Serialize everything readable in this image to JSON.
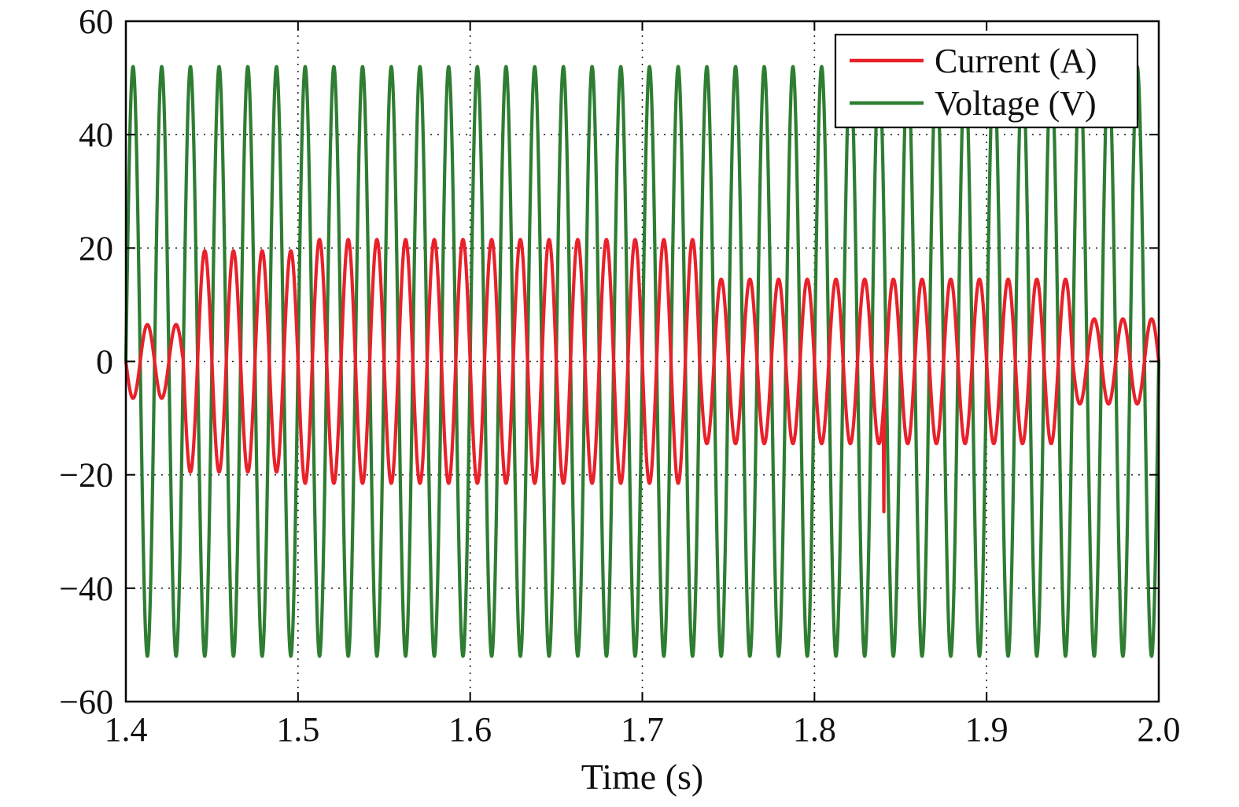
{
  "chart_data": {
    "type": "line",
    "title": "",
    "xlabel": "Time (s)",
    "ylabel": "",
    "xlim": [
      1.4,
      2.0
    ],
    "ylim": [
      -60,
      60
    ],
    "grid": true,
    "legend_position": "top-right",
    "x_ticks": [
      1.4,
      1.5,
      1.6,
      1.7,
      1.8,
      1.9,
      2.0
    ],
    "x_tick_labels": [
      "1.4",
      "1.5",
      "1.6",
      "1.7",
      "1.8",
      "1.9",
      "2.0"
    ],
    "y_ticks": [
      60,
      40,
      20,
      0,
      -20,
      -40,
      -60
    ],
    "y_tick_labels": [
      "60",
      "40",
      "20",
      "0",
      "−20",
      "−40",
      "−60"
    ],
    "series": [
      {
        "name": "Voltage (V)",
        "color": "#2e7d32",
        "waveform": "sine",
        "amplitude": 52,
        "frequency_hz": 60,
        "start_time": 1.4,
        "end_time": 2.0
      },
      {
        "name": "Current (A)",
        "color": "#e8212a",
        "waveform": "sine",
        "frequency_hz": 60,
        "start_time": 1.4,
        "end_time": 2.0,
        "segments": [
          {
            "start": 1.4,
            "end": 1.433,
            "amplitude": 6.5
          },
          {
            "start": 1.433,
            "end": 1.5,
            "amplitude": 19.5
          },
          {
            "start": 1.5,
            "end": 1.733,
            "amplitude": 21.5
          },
          {
            "start": 1.733,
            "end": 1.95,
            "amplitude": 14.5
          },
          {
            "start": 1.95,
            "end": 2.0,
            "amplitude": 7.5
          }
        ],
        "spike": {
          "time": 1.84,
          "value": -26.5
        }
      }
    ]
  }
}
